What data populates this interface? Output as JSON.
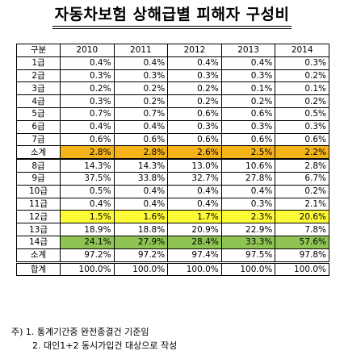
{
  "title": "자동차보험 상해급별 피해자 구성비",
  "table": {
    "header": [
      "구분",
      "2010",
      "2011",
      "2012",
      "2013",
      "2014"
    ],
    "rows": [
      {
        "label": "1급",
        "values": [
          "0.4%",
          "0.4%",
          "0.4%",
          "0.4%",
          "0.3%"
        ]
      },
      {
        "label": "2급",
        "values": [
          "0.3%",
          "0.3%",
          "0.3%",
          "0.3%",
          "0.2%"
        ]
      },
      {
        "label": "3급",
        "values": [
          "0.2%",
          "0.2%",
          "0.2%",
          "0.1%",
          "0.1%"
        ]
      },
      {
        "label": "4급",
        "values": [
          "0.3%",
          "0.2%",
          "0.2%",
          "0.2%",
          "0.2%"
        ]
      },
      {
        "label": "5급",
        "values": [
          "0.7%",
          "0.7%",
          "0.6%",
          "0.6%",
          "0.5%"
        ]
      },
      {
        "label": "6급",
        "values": [
          "0.4%",
          "0.4%",
          "0.3%",
          "0.3%",
          "0.3%"
        ]
      },
      {
        "label": "7급",
        "values": [
          "0.6%",
          "0.6%",
          "0.6%",
          "0.6%",
          "0.6%"
        ]
      },
      {
        "label": "소계",
        "values": [
          "2.8%",
          "2.8%",
          "2.6%",
          "2.5%",
          "2.2%"
        ]
      },
      {
        "label": "8급",
        "values": [
          "14.3%",
          "14.3%",
          "13.0%",
          "10.6%",
          "2.8%"
        ]
      },
      {
        "label": "9급",
        "values": [
          "37.5%",
          "33.8%",
          "32.7%",
          "27.8%",
          "6.7%"
        ]
      },
      {
        "label": "10급",
        "values": [
          "0.5%",
          "0.4%",
          "0.4%",
          "0.4%",
          "0.2%"
        ]
      },
      {
        "label": "11급",
        "values": [
          "0.4%",
          "0.4%",
          "0.4%",
          "0.3%",
          "2.1%"
        ]
      },
      {
        "label": "12급",
        "values": [
          "1.5%",
          "1.6%",
          "1.7%",
          "2.3%",
          "20.6%"
        ]
      },
      {
        "label": "13급",
        "values": [
          "18.9%",
          "18.8%",
          "20.9%",
          "22.9%",
          "7.8%"
        ]
      },
      {
        "label": "14급",
        "values": [
          "24.1%",
          "27.9%",
          "28.4%",
          "33.3%",
          "57.6%"
        ]
      },
      {
        "label": "소계",
        "values": [
          "97.2%",
          "97.2%",
          "97.4%",
          "97.5%",
          "97.8%"
        ]
      },
      {
        "label": "합계",
        "values": [
          "100.0%",
          "100.0%",
          "100.0%",
          "100.0%",
          "100.0%"
        ]
      }
    ]
  },
  "highlight_colors": {
    "orange": "#f5b31a",
    "yellow": "#fdfa38",
    "green": "#8fc455"
  },
  "notes": [
    "주) 1. 통계기간중 완전종결건 기준임",
    "2. 대인1+2 동시가입건 대상으로 작성"
  ]
}
